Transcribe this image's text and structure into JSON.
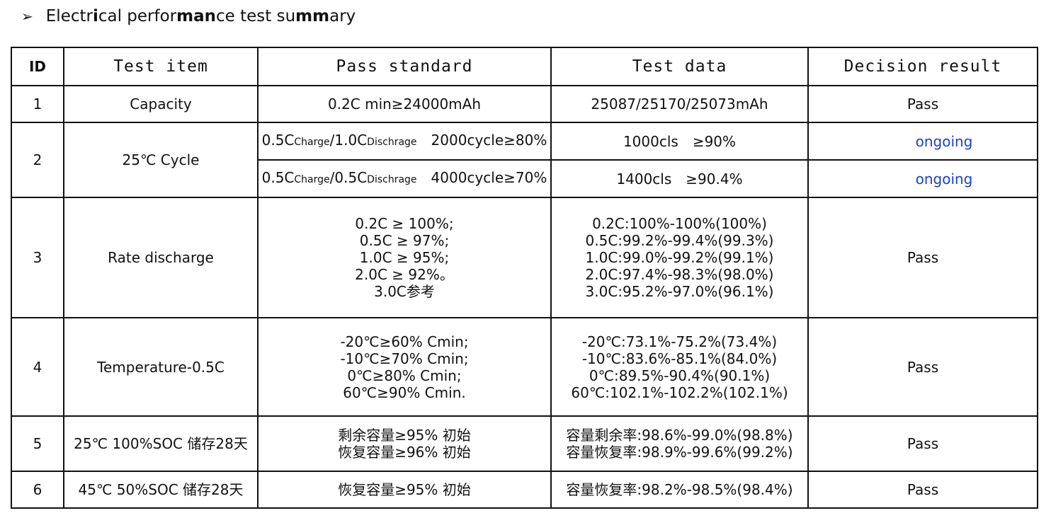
{
  "heading": {
    "bullet": "➢",
    "parts": [
      "Electr",
      "i",
      "cal perfor",
      "ma",
      "n",
      "ce test su",
      "mm",
      "ary"
    ]
  },
  "table": {
    "headers": [
      "ID",
      "Test item",
      "Pass standard",
      "Test data",
      "Decision result"
    ],
    "rows": [
      {
        "id": "1",
        "item": "Capacity",
        "standard": "0.2C min≥24000mAh",
        "data": "25087/25170/25073mAh",
        "result": "Pass"
      },
      {
        "id": "2",
        "item": "25℃ Cycle",
        "sub": [
          {
            "std_a": "0.5C",
            "std_a_sub": "Charge",
            "std_b": "/1.0C",
            "std_b_sub": "Dischrage",
            "std_c": "2000cycle≥80%",
            "data_a": "1000cls",
            "data_b": "≥90%",
            "result": "ongoing"
          },
          {
            "std_a": "0.5C",
            "std_a_sub": "Charge",
            "std_b": "/0.5C",
            "std_b_sub": "Dischrage",
            "std_c": "4000cycle≥70%",
            "data_a": "1400cls",
            "data_b": "≥90.4%",
            "result": "ongoing"
          }
        ]
      },
      {
        "id": "3",
        "item": "Rate discharge",
        "standard_lines": [
          "0.2C ≥ 100%;",
          "0.5C ≥ 97%;",
          "1.0C ≥ 95%;",
          "2.0C ≥ 92%。",
          "3.0C参考"
        ],
        "data_lines": [
          "0.2C:100%-100%(100%)",
          "0.5C:99.2%-99.4%(99.3%)",
          "1.0C:99.0%-99.2%(99.1%)",
          "2.0C:97.4%-98.3%(98.0%)",
          "3.0C:95.2%-97.0%(96.1%)"
        ],
        "result": "Pass"
      },
      {
        "id": "4",
        "item": "Temperature-0.5C",
        "standard_lines": [
          "-20℃≥60% Cmin;",
          "-10℃≥70% Cmin;",
          "0℃≥80% Cmin;",
          "60℃≥90% Cmin."
        ],
        "data_lines": [
          "-20℃:73.1%-75.2%(73.4%)",
          "-10℃:83.6%-85.1%(84.0%)",
          "0℃:89.5%-90.4%(90.1%)",
          "60℃:102.1%-102.2%(102.1%)"
        ],
        "result": "Pass"
      },
      {
        "id": "5",
        "item": "25℃ 100%SOC 储存28天",
        "standard_lines": [
          "剩余容量≥95% 初始",
          "恢复容量≥96% 初始"
        ],
        "data_lines": [
          "容量剩余率:98.6%-99.0%(98.8%)",
          "容量恢复率:98.9%-99.6%(99.2%)"
        ],
        "result": "Pass"
      },
      {
        "id": "6",
        "item": "45℃ 50%SOC 储存28天",
        "standard": "恢复容量≥95% 初始",
        "data": "容量恢复率:98.2%-98.5%(98.4%)",
        "result": "Pass"
      }
    ]
  }
}
